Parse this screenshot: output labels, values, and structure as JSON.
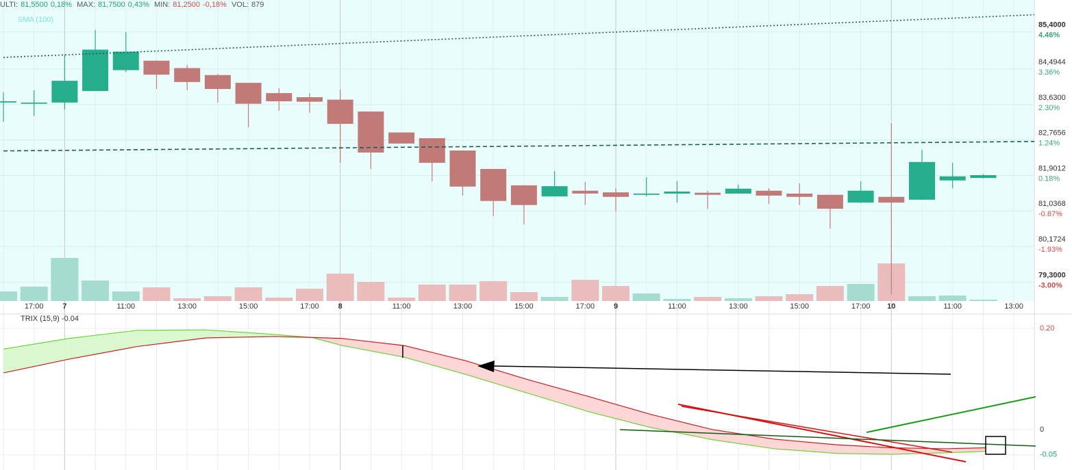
{
  "header": {
    "last_label": "ULTI:",
    "last": "81,5500",
    "last_change": "0,18%",
    "max_label": "MAX:",
    "max": "81,7500",
    "max_change": "0,43%",
    "min_label": "MIN:",
    "min": "81,2500",
    "min_change": "-0,18%",
    "vol_label": "VOL:",
    "vol": "879"
  },
  "chart_data": [
    {
      "type": "candlestick",
      "indicator_label": "SMA (100)",
      "categories": [
        null,
        "17:00",
        "7",
        null,
        "11:00",
        null,
        "13:00",
        null,
        "15:00",
        null,
        "17:00",
        "8",
        null,
        "11:00",
        null,
        "13:00",
        null,
        "15:00",
        null,
        "17:00",
        "9",
        null,
        "11:00",
        null,
        "13:00",
        null,
        "15:00",
        null,
        "17:00",
        "10",
        null,
        "11:00",
        null,
        "13:00"
      ],
      "open": [
        83.68,
        83.65,
        83.68,
        83.96,
        84.47,
        84.7,
        84.52,
        84.35,
        84.16,
        83.91,
        83.81,
        83.75,
        83.46,
        82.95,
        82.81,
        82.51,
        82.06,
        81.66,
        81.39,
        81.53,
        81.49,
        81.43,
        81.46,
        81.48,
        81.46,
        81.53,
        81.46,
        81.43,
        81.24,
        81.38,
        81.31,
        81.78,
        81.84,
        null
      ],
      "high": [
        83.93,
        83.98,
        84.85,
        85.45,
        85.4,
        84.7,
        84.6,
        84.38,
        84.16,
        84.03,
        83.91,
        84.0,
        83.46,
        82.95,
        82.81,
        82.51,
        82.06,
        81.66,
        82.01,
        81.74,
        81.59,
        81.86,
        81.76,
        81.53,
        81.68,
        81.59,
        81.71,
        81.43,
        81.76,
        83.18,
        82.53,
        82.21,
        81.93,
        null
      ],
      "low": [
        83.21,
        83.35,
        83.51,
        83.96,
        84.42,
        84.01,
        83.98,
        83.68,
        83.08,
        83.48,
        83.43,
        82.21,
        82.06,
        82.68,
        81.76,
        81.41,
        80.91,
        80.71,
        81.39,
        81.18,
        81.03,
        81.39,
        81.24,
        81.08,
        81.46,
        81.21,
        81.18,
        80.61,
        81.23,
        79.0,
        81.31,
        81.59,
        81.83,
        null
      ],
      "close": [
        83.71,
        83.68,
        84.21,
        84.97,
        84.92,
        84.36,
        84.18,
        84.01,
        83.65,
        83.71,
        83.7,
        83.16,
        82.46,
        82.68,
        82.21,
        81.63,
        81.28,
        81.18,
        81.64,
        81.46,
        81.38,
        81.46,
        81.51,
        81.43,
        81.58,
        81.41,
        81.38,
        81.09,
        81.53,
        81.24,
        82.23,
        81.88,
        81.91,
        null
      ],
      "colors": {
        "up": "#26ad8c",
        "down": "#c27a78"
      },
      "ylim": [
        78.84,
        86.18
      ],
      "yticks": [
        {
          "value": 85.4,
          "label": "85,4000"
        },
        {
          "value": 84.4944,
          "label": "84,4944"
        },
        {
          "value": 83.63,
          "label": "83,6300"
        },
        {
          "value": 82.7656,
          "label": "82,7656"
        },
        {
          "value": 81.9012,
          "label": "81,9012"
        },
        {
          "value": 81.0368,
          "label": "81,0368"
        },
        {
          "value": 80.1724,
          "label": "80,1724"
        },
        {
          "value": 79.3,
          "label": "79,3000"
        }
      ],
      "ytick_changes": [
        "4.46%",
        "3.36%",
        "2.30%",
        "1.24%",
        "0.18%",
        "-0.87%",
        "-1.93%",
        "-3.00%"
      ],
      "grid": true,
      "volume": {
        "values": [
          14,
          21,
          63,
          30,
          14,
          20,
          4,
          7,
          20,
          5,
          18,
          40,
          28,
          5,
          24,
          24,
          29,
          13,
          6,
          31,
          22,
          11,
          3,
          6,
          4,
          7,
          10,
          22,
          25,
          55,
          7,
          8,
          2,
          null
        ],
        "ylim": [
          0,
          150
        ],
        "colors": {
          "up": "#a6dccf",
          "down": "#ebbcbc"
        }
      },
      "overlays": [
        {
          "style": "dotted",
          "color": "#175e5a",
          "x": [
            0,
            33.67
          ],
          "values": [
            84.78,
            85.82
          ]
        },
        {
          "style": "dashed",
          "color": "#175e5a",
          "x": [
            0,
            33.67
          ],
          "values": [
            82.5,
            82.73
          ]
        }
      ]
    },
    {
      "type": "line",
      "title": "TRIX (15,9) -0.04",
      "x": [
        0,
        2.13,
        4.36,
        6.6,
        8.84,
        10.07,
        11.07,
        13.09,
        15.1,
        17.11,
        19.13,
        21.14,
        23.15,
        25.17,
        27.18,
        28.97,
        30.76,
        32.1
      ],
      "series": [
        {
          "color": "#6fd23a",
          "values": [
            0.159,
            0.18,
            0.196,
            0.197,
            0.188,
            0.182,
            0.166,
            0.143,
            0.109,
            0.072,
            0.035,
            0.004,
            -0.02,
            -0.038,
            -0.047,
            -0.049,
            -0.046,
            -0.043
          ]
        },
        {
          "color": "#c81e1e",
          "values": [
            0.112,
            0.139,
            0.164,
            0.181,
            0.184,
            0.182,
            0.18,
            0.166,
            0.136,
            0.099,
            0.065,
            0.03,
            0,
            -0.019,
            -0.03,
            -0.036,
            -0.038,
            -0.036
          ]
        }
      ],
      "fill_colors": {
        "above": "#d9f8d0",
        "below": "#fdd6d6"
      },
      "ylim": [
        -0.08,
        0.227
      ],
      "yticks": [
        {
          "value": 0.2,
          "label": "0.20"
        },
        0,
        -0.05
      ],
      "ytick_colors": [
        "#c94a4a",
        "#333",
        "#1f9e7e"
      ]
    }
  ]
}
